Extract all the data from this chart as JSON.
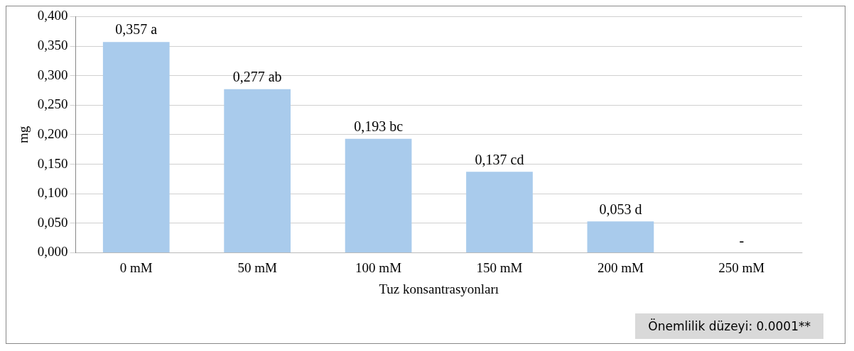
{
  "chart_data": {
    "type": "bar",
    "xlabel": "Tuz konsantrasyonları",
    "ylabel": "mg",
    "categories": [
      "0 mM",
      "50 mM",
      "100 mM",
      "150 mM",
      "200 mM",
      "250 mM"
    ],
    "values": [
      0.357,
      0.277,
      0.193,
      0.137,
      0.053,
      0
    ],
    "value_labels": [
      "0,357 a",
      "0,277 ab",
      "0,193 bc",
      "0,137 cd",
      "0,053 d",
      "-"
    ],
    "color": "#a9cbec",
    "ylim": [
      0,
      0.4
    ],
    "yticks": [
      {
        "value": 0,
        "label": "0,000"
      },
      {
        "value": 0.05,
        "label": "0,050"
      },
      {
        "value": 0.1,
        "label": "0,100"
      },
      {
        "value": 0.15,
        "label": "0,150"
      },
      {
        "value": 0.2,
        "label": "0,200"
      },
      {
        "value": 0.25,
        "label": "0,250"
      },
      {
        "value": 0.3,
        "label": "0,300"
      },
      {
        "value": 0.35,
        "label": "0,350"
      },
      {
        "value": 0.4,
        "label": "0,400"
      }
    ],
    "grid": "y",
    "annotations": [
      "Önemlilik düzeyi: 0.0001**"
    ]
  }
}
